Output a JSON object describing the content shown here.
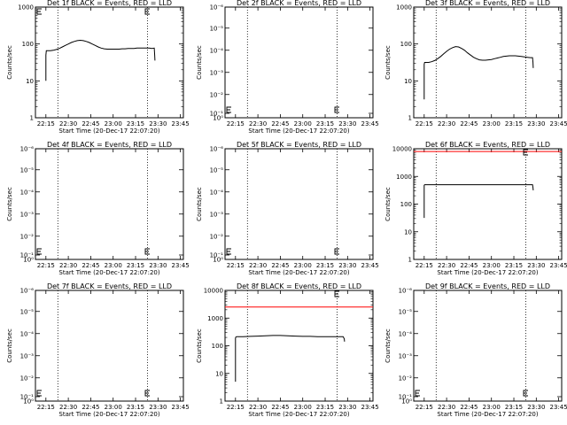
{
  "colors": {
    "events": "#000000",
    "lld": "#ff0000",
    "background": "#ffffff"
  },
  "chart_data": [
    {
      "type": "line",
      "title": "Det 1f BLACK = Events, RED = LLD",
      "xlabel": "Start Time (20-Dec-17 22:07:20)",
      "ylabel": "Counts/sec",
      "ylim_decades": [
        0,
        3
      ],
      "ytick_labels": [
        "1",
        "10",
        "100",
        "1000"
      ],
      "xtick_labels": [
        "22:15",
        "22:30",
        "22:45",
        "23:00",
        "23:15",
        "23:30",
        "23:45"
      ],
      "xlim_min": [
        8,
        107
      ],
      "ylog": true,
      "dotted_lines_min": [
        23,
        83
      ],
      "events": {
        "min": [
          15,
          15,
          15.3,
          16,
          18,
          20,
          22,
          24,
          26,
          28,
          30,
          32,
          34,
          36,
          38,
          40,
          42,
          44,
          46,
          48,
          50,
          52,
          54,
          56,
          58,
          60,
          62,
          64,
          66,
          68,
          70,
          72,
          74,
          76,
          78,
          80,
          82,
          84,
          86,
          87.5,
          87.8,
          88
        ],
        "log10": [
          1.0,
          1.7,
          1.82,
          1.82,
          1.82,
          1.83,
          1.85,
          1.88,
          1.92,
          1.96,
          2.0,
          2.04,
          2.07,
          2.09,
          2.1,
          2.09,
          2.07,
          2.04,
          2.0,
          1.96,
          1.92,
          1.89,
          1.87,
          1.86,
          1.86,
          1.86,
          1.86,
          1.86,
          1.87,
          1.87,
          1.88,
          1.88,
          1.88,
          1.89,
          1.89,
          1.89,
          1.89,
          1.89,
          1.88,
          1.89,
          1.7,
          1.55
        ]
      },
      "lld": null,
      "lld_marker": false,
      "e_marker": true,
      "e_marker_at_top": true
    },
    {
      "type": "line",
      "title": "Det 2f BLACK = Events, RED = LLD",
      "xlabel": "Start Time (20-Dec-17 22:07:20)",
      "ylabel": "Counts/sec",
      "ylim_decades": [
        -6,
        -5
      ],
      "ytick_labels": [
        "10⁻⁶",
        "10⁻⁵",
        "10⁻⁴",
        "10⁻³",
        "10⁻²",
        "10⁻¹",
        "10⁰"
      ],
      "xtick_labels": [
        "22:15",
        "22:30",
        "22:45",
        "23:00",
        "23:15",
        "23:30",
        "23:45"
      ],
      "xlim_min": [
        8,
        107
      ],
      "ylog": true,
      "dotted_lines_min": [
        23,
        83
      ],
      "events": null,
      "lld": null,
      "lld_marker": false,
      "e_marker": true,
      "e_marker_at_top": false
    },
    {
      "type": "line",
      "title": "Det 3f BLACK = Events, RED = LLD",
      "xlabel": "",
      "ylabel": "Counts/sec",
      "ylim_decades": [
        0,
        3
      ],
      "ytick_labels": [
        "1",
        "10",
        "100",
        "1000"
      ],
      "xtick_labels": [
        "22:15",
        "22:30",
        "22:45",
        "23:00",
        "23:15",
        "23:30",
        "23:45"
      ],
      "xlim_min": [
        8,
        107
      ],
      "ylog": true,
      "dotted_lines_min": [
        23,
        83
      ],
      "events": {
        "min": [
          15,
          15,
          15.3,
          16,
          18,
          20,
          22,
          24,
          26,
          28,
          30,
          32,
          34,
          36,
          38,
          40,
          42,
          44,
          46,
          48,
          50,
          52,
          54,
          56,
          58,
          60,
          62,
          64,
          66,
          68,
          70,
          72,
          74,
          76,
          78,
          80,
          82,
          84,
          86,
          87.5,
          87.8,
          88
        ],
        "log10": [
          0.5,
          1.45,
          1.5,
          1.5,
          1.5,
          1.52,
          1.55,
          1.6,
          1.66,
          1.73,
          1.8,
          1.86,
          1.9,
          1.93,
          1.92,
          1.88,
          1.83,
          1.76,
          1.7,
          1.64,
          1.6,
          1.57,
          1.56,
          1.56,
          1.57,
          1.58,
          1.6,
          1.62,
          1.64,
          1.66,
          1.67,
          1.68,
          1.68,
          1.68,
          1.67,
          1.66,
          1.65,
          1.64,
          1.63,
          1.63,
          1.5,
          1.35
        ]
      },
      "lld": null,
      "lld_marker": false,
      "e_marker": false,
      "e_marker_at_top": false
    },
    {
      "type": "line",
      "title": "Det 4f BLACK = Events, RED = LLD",
      "xlabel": "Start Time (20-Dec-17 22:07:20)",
      "ylabel": "Counts/sec",
      "ylim_decades": [
        -6,
        -5
      ],
      "ytick_labels": [
        "10⁻⁶",
        "10⁻⁵",
        "10⁻⁴",
        "10⁻³",
        "10⁻²",
        "10⁻¹",
        "10⁰"
      ],
      "xtick_labels": [
        "22:15",
        "22:30",
        "22:45",
        "23:00",
        "23:15",
        "23:30",
        "23:45"
      ],
      "xlim_min": [
        8,
        107
      ],
      "ylog": true,
      "dotted_lines_min": [
        23,
        83
      ],
      "events": null,
      "lld": null,
      "lld_marker": false,
      "e_marker": true,
      "e_marker_at_top": false
    },
    {
      "type": "line",
      "title": "Det 5f BLACK = Events, RED = LLD",
      "xlabel": "Start Time (20-Dec-17 22:07:20)",
      "ylabel": "Counts/sec",
      "ylim_decades": [
        -6,
        -5
      ],
      "ytick_labels": [
        "10⁻⁶",
        "10⁻⁵",
        "10⁻⁴",
        "10⁻³",
        "10⁻²",
        "10⁻¹",
        "10⁰"
      ],
      "xtick_labels": [
        "22:15",
        "22:30",
        "22:45",
        "23:00",
        "23:15",
        "23:30",
        "23:45"
      ],
      "xlim_min": [
        8,
        107
      ],
      "ylog": true,
      "dotted_lines_min": [
        23,
        83
      ],
      "events": null,
      "lld": null,
      "lld_marker": false,
      "e_marker": true,
      "e_marker_at_top": false
    },
    {
      "type": "line",
      "title": "Det 6f BLACK = Events, RED = LLD",
      "xlabel": "Start Time (20-Dec-17 22:07:20)",
      "ylabel": "Counts/sec",
      "ylim_decades": [
        0,
        4
      ],
      "ytick_labels": [
        "1",
        "10",
        "100",
        "1000",
        "10000"
      ],
      "xtick_labels": [
        "22:15",
        "22:30",
        "22:45",
        "23:00",
        "23:15",
        "23:30",
        "23:45"
      ],
      "xlim_min": [
        8,
        107
      ],
      "ylog": true,
      "dotted_lines_min": [
        23,
        83
      ],
      "events": {
        "min": [
          15,
          15,
          15.3,
          20,
          30,
          40,
          50,
          60,
          70,
          80,
          87.5,
          87.8,
          88
        ],
        "log10": [
          1.5,
          2.68,
          2.7,
          2.7,
          2.7,
          2.7,
          2.7,
          2.7,
          2.7,
          2.7,
          2.7,
          2.6,
          2.5
        ]
      },
      "lld": {
        "log10": 3.9
      },
      "lld_marker": true,
      "e_marker": false,
      "e_marker_at_top": false
    },
    {
      "type": "line",
      "title": "Det 7f BLACK = Events, RED = LLD",
      "xlabel": "Start Time (20-Dec-17 22:07:20)",
      "ylabel": "Counts/sec",
      "ylim_decades": [
        -6,
        -5
      ],
      "ytick_labels": [
        "10⁻⁶",
        "10⁻⁵",
        "10⁻⁴",
        "10⁻³",
        "10⁻²",
        "10⁻¹",
        "10⁰"
      ],
      "xtick_labels": [
        "22:15",
        "22:30",
        "22:45",
        "23:00",
        "23:15",
        "23:30",
        "23:45"
      ],
      "xlim_min": [
        8,
        107
      ],
      "ylog": true,
      "dotted_lines_min": [
        23,
        83
      ],
      "events": null,
      "lld": null,
      "lld_marker": false,
      "e_marker": true,
      "e_marker_at_top": false
    },
    {
      "type": "line",
      "title": "Det 8f BLACK = Events, RED = LLD",
      "xlabel": "Start Time (20-Dec-17 22:07:20)",
      "ylabel": "Counts/sec",
      "ylim_decades": [
        0,
        4
      ],
      "ytick_labels": [
        "1",
        "10",
        "100",
        "1000",
        "10000"
      ],
      "xtick_labels": [
        "22:15",
        "22:30",
        "22:45",
        "23:00",
        "23:15",
        "23:30",
        "23:45"
      ],
      "xlim_min": [
        8,
        107
      ],
      "ylog": true,
      "dotted_lines_min": [
        23,
        83
      ],
      "events": {
        "min": [
          15,
          15,
          15.3,
          16,
          20,
          25,
          30,
          35,
          40,
          45,
          50,
          55,
          60,
          65,
          70,
          75,
          80,
          85,
          87,
          87.8,
          88
        ],
        "log10": [
          0.7,
          2.28,
          2.32,
          2.33,
          2.33,
          2.34,
          2.35,
          2.36,
          2.37,
          2.37,
          2.36,
          2.35,
          2.34,
          2.34,
          2.33,
          2.33,
          2.33,
          2.33,
          2.33,
          2.25,
          2.15
        ]
      },
      "lld": {
        "log10": 3.4
      },
      "lld_marker": true,
      "e_marker": false,
      "e_marker_at_top": false
    },
    {
      "type": "line",
      "title": "Det 9f BLACK = Events, RED = LLD",
      "xlabel": "Start Time (20-Dec-17 22:07:20)",
      "ylabel": "Counts/sec",
      "ylim_decades": [
        -6,
        -5
      ],
      "ytick_labels": [
        "10⁻⁶",
        "10⁻⁵",
        "10⁻⁴",
        "10⁻³",
        "10⁻²",
        "10⁻¹",
        "10⁰"
      ],
      "xtick_labels": [
        "22:15",
        "22:30",
        "22:45",
        "23:00",
        "23:15",
        "23:30",
        "23:45"
      ],
      "xlim_min": [
        8,
        107
      ],
      "ylog": true,
      "dotted_lines_min": [
        23,
        83
      ],
      "events": null,
      "lld": null,
      "lld_marker": false,
      "e_marker": true,
      "e_marker_at_top": false
    }
  ]
}
